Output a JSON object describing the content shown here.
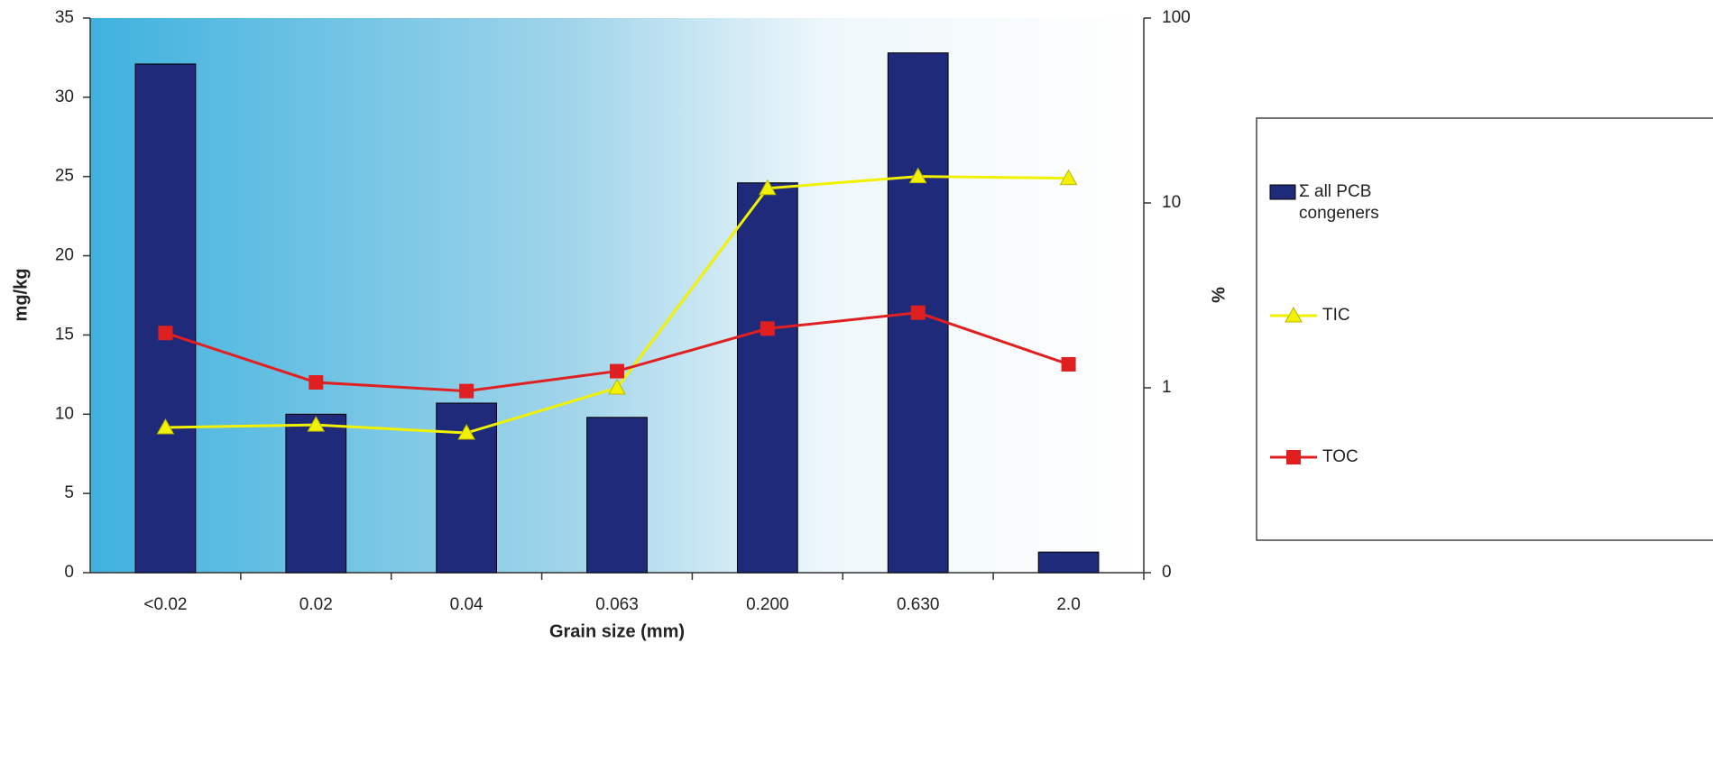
{
  "chart_data": {
    "type": "bar",
    "categories": [
      "<0.02",
      "0.02",
      "0.04",
      "0.063",
      "0.200",
      "0.630",
      "2.0"
    ],
    "x_label": "Grain size (mm)",
    "y_label": "mg/kg",
    "y2_label": "%",
    "ylim": [
      0,
      35
    ],
    "yticks": [
      0,
      5,
      10,
      15,
      20,
      25,
      30,
      35
    ],
    "y2lim": [
      0.1,
      100
    ],
    "y2_log": true,
    "y2ticks": [
      {
        "value": 0.1,
        "label": "0"
      },
      1,
      10,
      100
    ],
    "series": [
      {
        "name": "Σ all PCB congeners",
        "type": "bar",
        "color": "#1f2a7a",
        "values": [
          32.1,
          10.0,
          10.7,
          9.8,
          24.6,
          32.8,
          1.3
        ]
      },
      {
        "name": "TIC",
        "type": "line",
        "marker": "triangle",
        "axis": "y2",
        "color": "#f2f200",
        "values": [
          0.61,
          0.63,
          0.57,
          1.0,
          12,
          13.9,
          13.6
        ]
      },
      {
        "name": "TOC",
        "type": "line",
        "marker": "square",
        "axis": "y2",
        "color": "#e02020",
        "values": [
          1.98,
          1.07,
          0.96,
          1.23,
          2.09,
          2.55,
          1.34
        ]
      }
    ],
    "legend": "right"
  }
}
